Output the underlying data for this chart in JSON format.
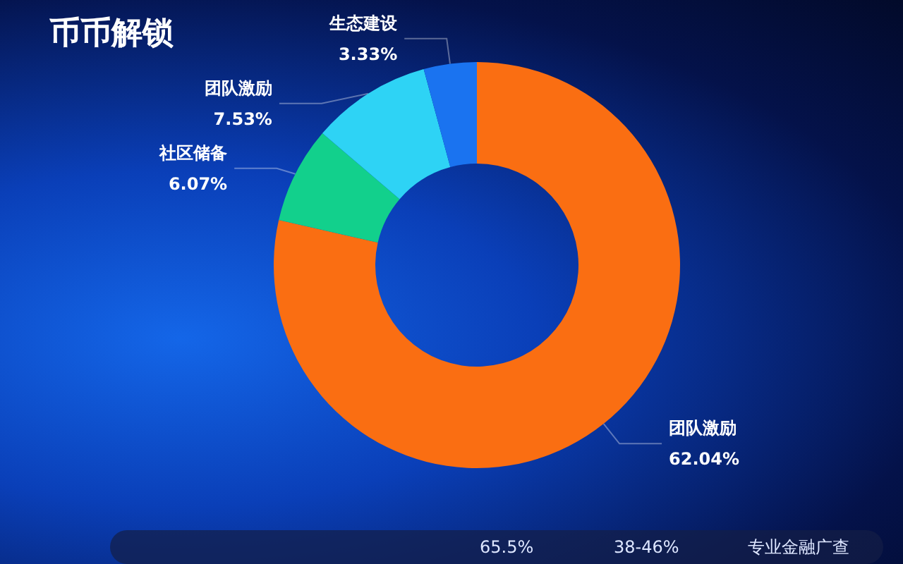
{
  "chart_data": {
    "type": "donut",
    "title": "币币解锁",
    "categories": [
      "团队激励",
      "社区储备",
      "团队激励",
      "生态建设"
    ],
    "values": [
      62.04,
      6.07,
      7.53,
      3.33
    ],
    "colors": [
      "#fa6e12",
      "#12d08c",
      "#2ed3f5",
      "#1a73f0"
    ],
    "value_labels": [
      "62.04%",
      "6.07%",
      "7.53%",
      "3.33%"
    ],
    "annotations": [
      "65.5%",
      "38-46%",
      "专业金融广查"
    ],
    "legend": false
  }
}
